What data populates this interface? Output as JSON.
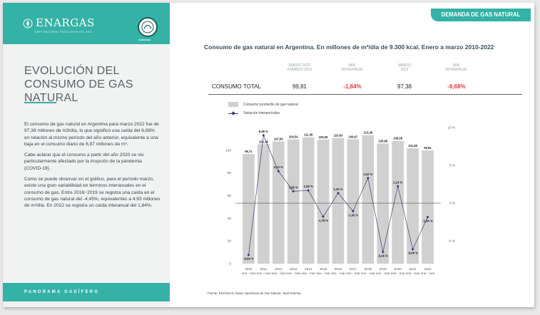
{
  "header": {
    "tab_label": "DEMANDA DE GAS NATURAL"
  },
  "sidebar": {
    "logo_text": "ENARGAS",
    "logo_subtext": "ENTE NACIONAL REGULADOR DEL GAS",
    "seal_caption": "PANORAMA",
    "title": "EVOLUCIÓN DEL CONSUMO DE GAS NATURAL",
    "paragraphs": [
      "El consumo de gas natural en Argentina para marzo 2022 fue de 97,38 millones de m3/día, lo que significó una caída del 6,68% en relación al mismo período del año anterior, equivalente a una baja en el consumo diario de 6,97 millones de m³.",
      "Cabe aclarar que el consumo a partir del año 2020 se vio particularmente afectado por la irrupción de la pandemia (COVID-19).",
      "Como se puede observar en el gráfico, para el período marzo, existe una gran variabilidad en términos interanuales en el consumo de gas. Entre 2016−2019 se registra una caída en el consumo de gas natural del -4,45%, equivalentes a 4,93 millones de m³/día. En 2022 se registra un caída interanual del 1,84%."
    ],
    "footer": "PANORAMA GASÍFERO"
  },
  "main": {
    "title": "Consumo de gas natural en Argentina. En millones de m³/día de 9.300 kcal. Enero a marzo 2010-2022",
    "table": {
      "headers": [
        "ENERO 2022\nA MARZO 2022",
        "VAR.\nINTERANUAL",
        "MARZO\n2022",
        "VAR.\nINTERANUAL"
      ],
      "row_label": "CONSUMO TOTAL",
      "values": [
        "99,81",
        "-1,84%",
        "97,38",
        "-6,68%"
      ]
    },
    "source": "Fuente: ENARGAS. Datos Operativos de Gas Natural. Total Sistema."
  },
  "chart_data": {
    "type": "bar",
    "categories": [
      "2010",
      "2011",
      "2012",
      "2013",
      "2014",
      "2015",
      "2016",
      "2017",
      "2018",
      "2019",
      "2020",
      "2021",
      "2022"
    ],
    "category_sublabel": "ene - mar",
    "series": [
      {
        "name": "Consumo promedio de gas natural",
        "type": "bar",
        "axis": "left",
        "values": [
          96.71,
          105.38,
          107.84,
          109.54,
          111.38,
          109.38,
          110.83,
          109.67,
          113.28,
          105.98,
          108.28,
          101.69,
          99.81
        ],
        "labels": [
          "96,71",
          "105,38",
          "107,84",
          "109,54",
          "111,38",
          "109,38",
          "110,83",
          "109,67",
          "113,28",
          "105,98",
          "108,28",
          "101,69",
          "99,81"
        ]
      },
      {
        "name": "Variación interperíodos",
        "type": "line",
        "axis": "right",
        "values": [
          -6.84,
          8.98,
          4.23,
          1.58,
          1.69,
          -1.78,
          1.33,
          -1.05,
          3.32,
          -6.45,
          2.24,
          -6.09,
          -1.84
        ],
        "labels": [
          "-6,84 %",
          "8,98 %",
          "4,23 %",
          "1,58 %",
          "1,69 %",
          "-1,78 %",
          "1,33 %",
          "-1,05 %",
          "3,32 %",
          "-6,45 %",
          "2,24 %",
          "-6,09 %",
          "-1,84 %"
        ]
      }
    ],
    "left_axis": {
      "min": 0,
      "max": 120,
      "ticks": [
        "0",
        "20",
        "40",
        "60",
        "80",
        "100"
      ]
    },
    "right_axis": {
      "min": -8,
      "max": 10,
      "ticks": [
        "-5 %",
        "0 %",
        "5 %",
        "10 %"
      ]
    },
    "colors": {
      "bar": "#d0d0d0",
      "line": "#3a3f73",
      "zero_line": "#555555"
    },
    "legend_position": "top-left"
  }
}
